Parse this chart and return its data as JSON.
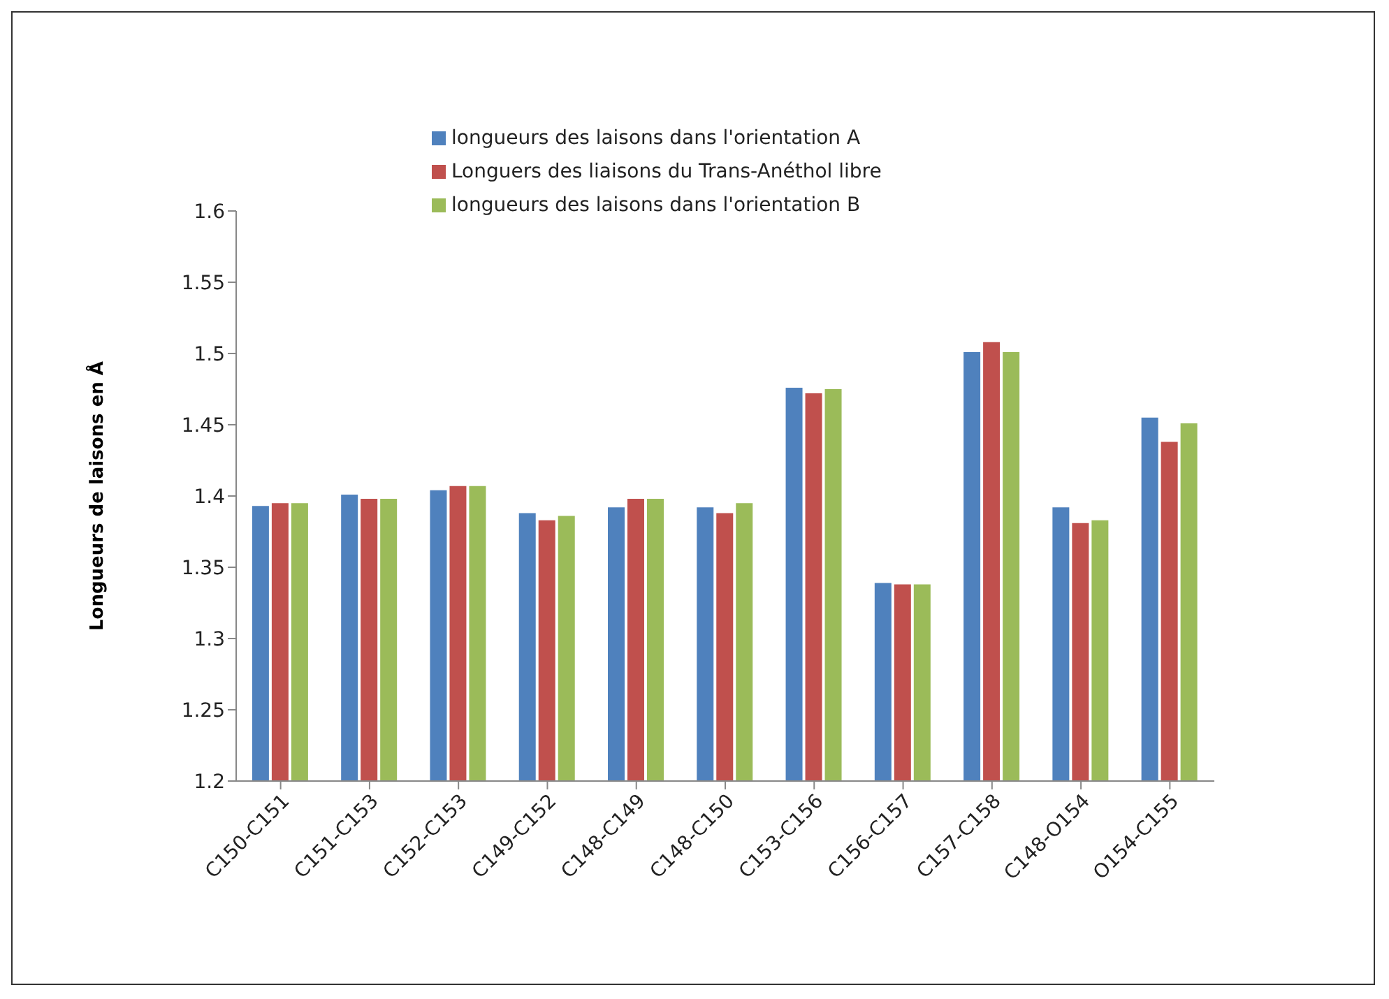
{
  "chart_data": {
    "type": "bar",
    "ylabel": "Longueurs de laisons en Å",
    "categories": [
      "C150-C151",
      "C151-C153",
      "C152-C153",
      "C149-C152",
      "C148-C149",
      "C148-C150",
      "C153-C156",
      "C156-C157",
      "C157-C158",
      "C148-O154",
      "O154-C155"
    ],
    "series": [
      {
        "name": "longueurs des laisons dans l'orientation A",
        "color": "#4f81bd",
        "values": [
          1.393,
          1.401,
          1.404,
          1.388,
          1.392,
          1.392,
          1.476,
          1.339,
          1.501,
          1.392,
          1.455
        ]
      },
      {
        "name": "Longuers des liaisons du Trans-Anéthol libre",
        "color": "#c0504d",
        "values": [
          1.395,
          1.398,
          1.407,
          1.383,
          1.398,
          1.388,
          1.472,
          1.338,
          1.508,
          1.381,
          1.438
        ]
      },
      {
        "name": "longueurs des laisons dans l'orientation B",
        "color": "#9bbb59",
        "values": [
          1.395,
          1.398,
          1.407,
          1.386,
          1.398,
          1.395,
          1.475,
          1.338,
          1.501,
          1.383,
          1.451
        ]
      }
    ],
    "ylim": [
      1.2,
      1.6
    ],
    "yticks": [
      1.2,
      1.25,
      1.3,
      1.35,
      1.4,
      1.45,
      1.5,
      1.55,
      1.6
    ],
    "grid": false,
    "legend": "top"
  }
}
